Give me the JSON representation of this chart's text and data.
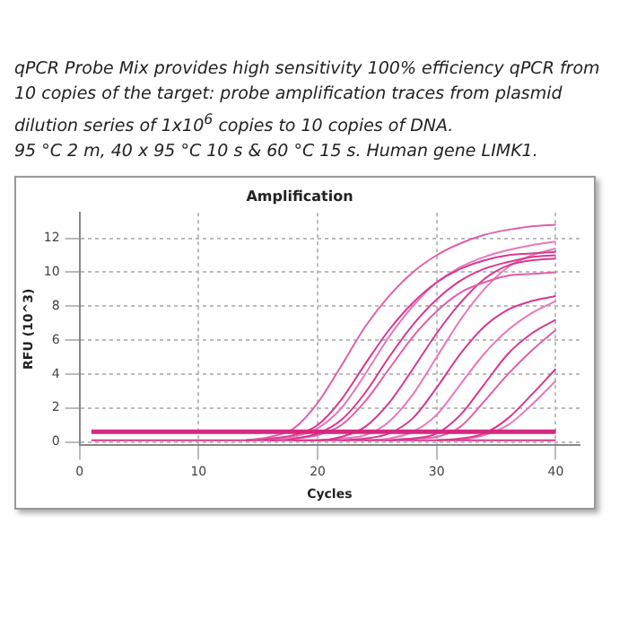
{
  "chart_data": {
    "type": "line",
    "title": "Amplification",
    "xlabel": "Cycles",
    "ylabel": "RFU (10^3)",
    "annotations": [
      "qPCR Probe Mix provides high sensitivity 100% efficiency qPCR from 10 copies of the target: probe amplification traces from plasmid dilution series of 1x10$^{6}$ copies to 10 copies of DNA.",
      "95 °C 2 m, 40 x 95 °C 10 s & 60 °C 15 s. Human gene LIMK1."
    ],
    "xlim": [
      0,
      42
    ],
    "xticks": [
      0,
      10,
      20,
      30,
      40
    ],
    "ylim": [
      -0.2,
      13.5
    ],
    "yticks": [
      0,
      2,
      4,
      6,
      8,
      10,
      12
    ],
    "grid": true,
    "legend": false,
    "marker": "none",
    "line_style": "solid",
    "ref_lines": [
      {
        "axis": "y",
        "value": 0.6,
        "color": "#d6287f"
      }
    ],
    "series": [
      {
        "color": "#d8388e",
        "x": [
          1,
          40
        ],
        "values": [
          0.1,
          0.1
        ]
      },
      {
        "color": "#e060a8",
        "x": [
          14,
          16,
          18,
          20,
          22,
          24,
          26,
          28,
          30,
          32,
          34,
          36,
          38,
          40
        ],
        "values": [
          0.1,
          0.3,
          0.8,
          2.3,
          4.5,
          6.8,
          8.6,
          10.0,
          11.0,
          11.7,
          12.2,
          12.5,
          12.7,
          12.8
        ]
      },
      {
        "color": "#d8388e",
        "x": [
          14,
          16,
          18,
          20,
          22,
          24,
          26,
          28,
          30,
          32,
          34,
          36,
          38,
          40
        ],
        "values": [
          0.1,
          0.2,
          0.4,
          1.0,
          2.5,
          4.6,
          6.6,
          8.2,
          9.4,
          10.2,
          10.7,
          11.0,
          11.1,
          11.2
        ]
      },
      {
        "color": "#e878b8",
        "x": [
          16,
          18,
          20,
          22,
          24,
          26,
          28,
          30,
          32,
          34,
          36,
          38,
          40
        ],
        "values": [
          0.1,
          0.3,
          0.8,
          2.0,
          4.0,
          6.2,
          8.0,
          9.4,
          10.3,
          10.9,
          11.3,
          11.6,
          11.8
        ]
      },
      {
        "color": "#d8388e",
        "x": [
          16,
          18,
          20,
          22,
          24,
          26,
          28,
          30,
          32,
          34,
          36,
          38,
          40
        ],
        "values": [
          0.1,
          0.2,
          0.5,
          1.3,
          2.9,
          5.0,
          6.9,
          8.4,
          9.5,
          10.2,
          10.6,
          10.9,
          11.0
        ]
      },
      {
        "color": "#e060a8",
        "x": [
          16,
          18,
          20,
          22,
          24,
          26,
          28,
          30,
          32,
          34,
          36,
          38,
          40
        ],
        "values": [
          0.1,
          0.2,
          0.4,
          1.0,
          2.4,
          4.3,
          6.2,
          7.7,
          8.8,
          9.4,
          9.8,
          9.9,
          10.0
        ]
      },
      {
        "color": "#d8388e",
        "x": [
          18,
          20,
          22,
          24,
          26,
          28,
          30,
          32,
          34,
          36,
          38,
          40
        ],
        "values": [
          0.1,
          0.1,
          0.3,
          0.9,
          2.3,
          4.3,
          6.4,
          8.2,
          9.6,
          10.4,
          10.7,
          10.8
        ]
      },
      {
        "color": "#e878b8",
        "x": [
          20,
          22,
          24,
          26,
          28,
          30,
          32,
          34,
          36,
          38,
          40
        ],
        "values": [
          0.1,
          0.2,
          0.4,
          1.2,
          2.8,
          5.0,
          7.2,
          9.0,
          10.3,
          11.0,
          11.4
        ]
      },
      {
        "color": "#d8388e",
        "x": [
          22,
          24,
          26,
          28,
          30,
          32,
          34,
          36,
          38,
          40
        ],
        "values": [
          0.1,
          0.2,
          0.5,
          1.4,
          3.2,
          5.2,
          6.8,
          7.8,
          8.3,
          8.6
        ]
      },
      {
        "color": "#e878b8",
        "x": [
          24,
          26,
          28,
          30,
          32,
          34,
          36,
          38,
          40
        ],
        "values": [
          0.1,
          0.2,
          0.6,
          1.6,
          3.4,
          5.2,
          6.6,
          7.6,
          8.3
        ]
      },
      {
        "color": "#d8388e",
        "x": [
          26,
          28,
          30,
          32,
          34,
          36,
          38,
          40
        ],
        "values": [
          0.1,
          0.2,
          0.5,
          1.6,
          3.4,
          5.2,
          6.4,
          7.2
        ]
      },
      {
        "color": "#e060a8",
        "x": [
          26,
          28,
          30,
          32,
          34,
          36,
          38,
          40
        ],
        "values": [
          0.1,
          0.2,
          0.3,
          0.9,
          2.4,
          4.0,
          5.4,
          6.6
        ]
      },
      {
        "color": "#d8388e",
        "x": [
          30,
          32,
          34,
          36,
          38,
          40
        ],
        "values": [
          0.1,
          0.2,
          0.5,
          1.4,
          2.8,
          4.3
        ]
      },
      {
        "color": "#e878b8",
        "x": [
          32,
          34,
          36,
          38,
          40
        ],
        "values": [
          0.1,
          0.4,
          1.0,
          2.2,
          3.6
        ]
      }
    ]
  }
}
